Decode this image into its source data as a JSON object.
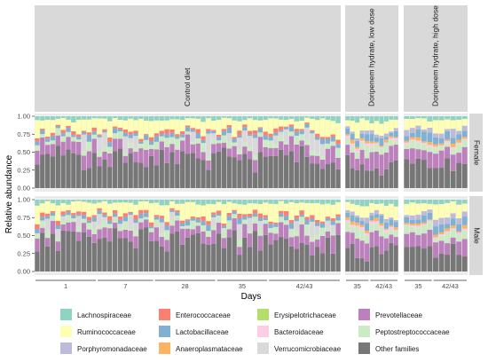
{
  "chart_data": {
    "type": "bar",
    "stacked": true,
    "xlabel": "Days",
    "ylabel": "Relative abundance",
    "ylim": [
      0,
      1
    ],
    "yticks": [
      "0.00",
      "0.25",
      "0.50",
      "0.75",
      "1.00"
    ],
    "row_facets": [
      "Female",
      "Male"
    ],
    "col_facets": [
      {
        "label": "Control diet",
        "bars": 59,
        "groups": [
          {
            "label": "1",
            "from": 0,
            "to": 11
          },
          {
            "label": "7",
            "from": 12,
            "to": 22
          },
          {
            "label": "28",
            "from": 23,
            "to": 34
          },
          {
            "label": "35",
            "from": 35,
            "to": 44
          },
          {
            "label": "42/43",
            "from": 45,
            "to": 58
          }
        ]
      },
      {
        "label": "Doripenem hydrate, low dose",
        "bars": 11,
        "groups": [
          {
            "label": "35",
            "from": 0,
            "to": 4
          },
          {
            "label": "42/43",
            "from": 5,
            "to": 10
          }
        ]
      },
      {
        "label": "Doripenem hydrate, high dose",
        "bars": 11,
        "groups": [
          {
            "label": "35",
            "from": 0,
            "to": 4
          },
          {
            "label": "42/43",
            "from": 5,
            "to": 10
          }
        ]
      }
    ],
    "series": [
      {
        "name": "Lachnospiraceae",
        "color": "#8FD3C3"
      },
      {
        "name": "Ruminococcaceae",
        "color": "#FFFFB3"
      },
      {
        "name": "Porphyromonadaceae",
        "color": "#BEBADA"
      },
      {
        "name": "Enterococcaceae",
        "color": "#FB8072"
      },
      {
        "name": "Lactobacillaceae",
        "color": "#80B1D3"
      },
      {
        "name": "Anaeroplasmataceae",
        "color": "#FDB462"
      },
      {
        "name": "Erysipelotrichaceae",
        "color": "#B3DE69"
      },
      {
        "name": "Bacteroidaceae",
        "color": "#FCCDE5"
      },
      {
        "name": "Verrucomicrobiaceae",
        "color": "#D9D9D9"
      },
      {
        "name": "Prevotellaceae",
        "color": "#BC80BD"
      },
      {
        "name": "Peptostreptococcaceae",
        "color": "#CCEBC5"
      },
      {
        "name": "Other families",
        "color": "#777777"
      }
    ],
    "stack_order": [
      11,
      9,
      10,
      8,
      7,
      6,
      5,
      4,
      3,
      2,
      1,
      0
    ],
    "profiles": {
      "Control diet": [
        0.05,
        0.17,
        0.0,
        0.04,
        0.05,
        0.0,
        0.0,
        0.0,
        0.0,
        0.16,
        0.08,
        0.45
      ],
      "Doripenem hydrate, low dose": [
        0.06,
        0.14,
        0.05,
        0.0,
        0.07,
        0.03,
        0.0,
        0.03,
        0.0,
        0.2,
        0.12,
        0.3
      ],
      "Doripenem hydrate, high dose": [
        0.05,
        0.14,
        0.06,
        0.0,
        0.09,
        0.03,
        0.0,
        0.02,
        0.0,
        0.18,
        0.1,
        0.33
      ]
    },
    "legend_position": "bottom"
  }
}
